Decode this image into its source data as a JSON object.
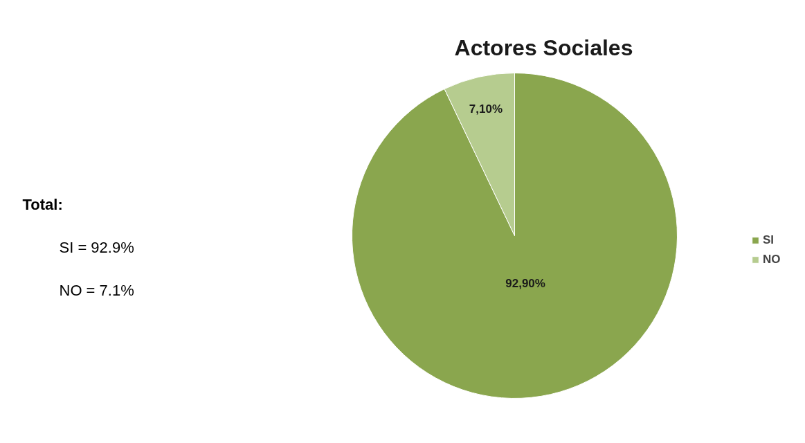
{
  "chart_data": {
    "type": "pie",
    "title": "Actores Sociales",
    "categories": [
      "SI",
      "NO"
    ],
    "values": [
      92.9,
      7.1
    ],
    "colors": [
      "#8aa64e",
      "#b6cc8f"
    ],
    "value_labels": [
      "92,90%",
      "7,10%"
    ],
    "legend": "right",
    "annotations": [
      "Total:",
      "SI = 92.9%",
      "NO = 7.1%"
    ]
  }
}
